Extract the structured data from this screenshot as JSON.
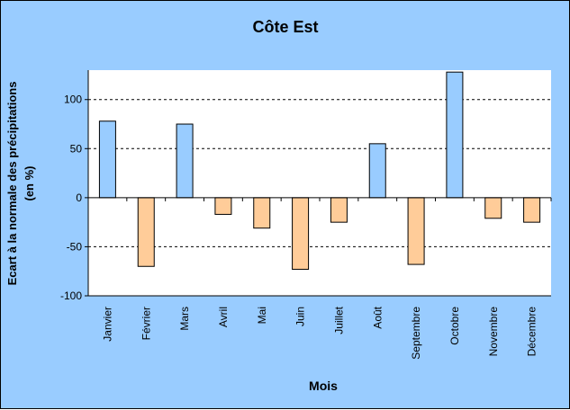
{
  "chart_data": {
    "type": "bar",
    "title": "Côte Est",
    "xlabel": "Mois",
    "ylabel_lines": [
      "Ecart à la normale des précipitations",
      "(en %)"
    ],
    "categories": [
      "Janvier",
      "Février",
      "Mars",
      "Avril",
      "Mai",
      "Juin",
      "Juillet",
      "Août",
      "Septembre",
      "Octobre",
      "Novembre",
      "Décembre"
    ],
    "values": [
      78,
      -70,
      75,
      -17,
      -31,
      -73,
      -25,
      55,
      -68,
      128,
      -21,
      -25
    ],
    "ylim": [
      -100,
      130
    ],
    "yticks": [
      -100,
      -50,
      0,
      50,
      100
    ],
    "grid": true,
    "grid_style": "dashed",
    "legend": false,
    "colors": {
      "positive": "#99ccff",
      "negative": "#ffcc99",
      "plot_background": "#ffffff",
      "frame_background": "#99ccff",
      "bar_border": "#000000"
    }
  }
}
